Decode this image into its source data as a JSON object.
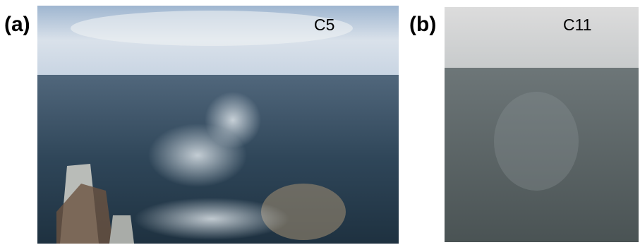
{
  "panels": [
    {
      "label": "(a)",
      "caption": "C5"
    },
    {
      "label": "(b)",
      "caption": "C11"
    }
  ]
}
